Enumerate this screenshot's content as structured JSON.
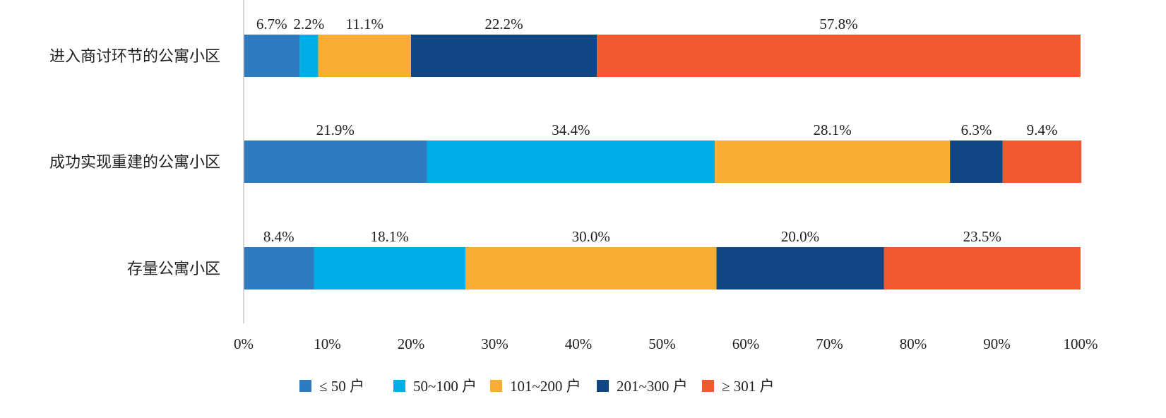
{
  "chart_data": {
    "type": "bar",
    "orientation": "horizontal",
    "stacked": true,
    "categories": [
      "进入商讨环节的公寓小区",
      "成功实现重建的公寓小区",
      "存量公寓小区"
    ],
    "series": [
      {
        "name": "≤ 50 户",
        "color": "#2e7bbf",
        "values": [
          6.7,
          21.9,
          8.4
        ],
        "labels": [
          "6.7%",
          "21.9%",
          "8.4%"
        ]
      },
      {
        "name": "50~100 户",
        "color": "#00aee6",
        "values": [
          2.2,
          34.4,
          18.1
        ],
        "labels": [
          "2.2%",
          "34.4%",
          "18.1%"
        ]
      },
      {
        "name": "101~200 户",
        "color": "#f8ad33",
        "values": [
          11.1,
          28.1,
          30.0
        ],
        "labels": [
          "11.1%",
          "28.1%",
          "30.0%"
        ]
      },
      {
        "name": "201~300 户",
        "color": "#104681",
        "values": [
          22.2,
          6.3,
          20.0
        ],
        "labels": [
          "22.2%",
          "6.3%",
          "20.0%"
        ]
      },
      {
        "name": "≥ 301 户",
        "color": "#f15a31",
        "values": [
          57.8,
          9.4,
          23.5
        ],
        "labels": [
          "57.8%",
          "9.4%",
          "23.5%"
        ]
      }
    ],
    "xlim": [
      0,
      100
    ],
    "xticks": [
      "0%",
      "10%",
      "20%",
      "30%",
      "40%",
      "50%",
      "60%",
      "70%",
      "80%",
      "90%",
      "100%"
    ],
    "grid": false,
    "legend_position": "bottom"
  }
}
